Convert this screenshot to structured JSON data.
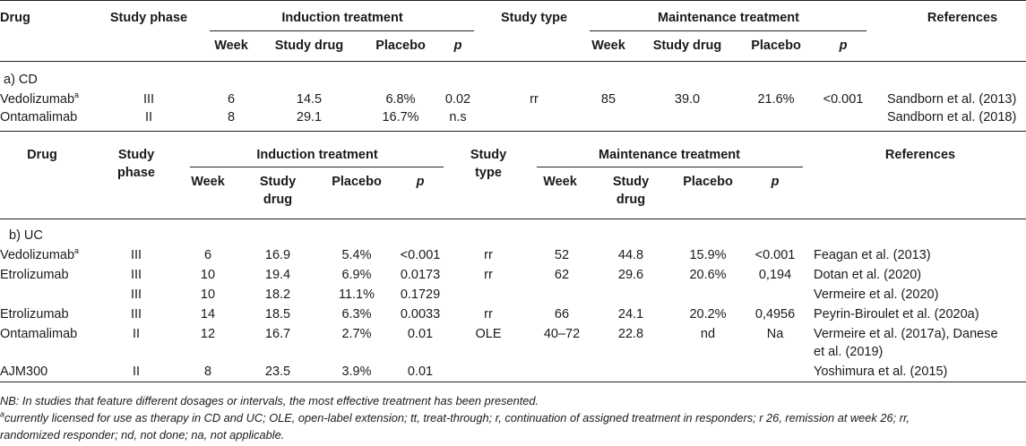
{
  "tableA": {
    "headers": {
      "drug": "Drug",
      "phase": "Study phase",
      "induction": "Induction treatment",
      "study_type": "Study type",
      "maintenance": "Maintenance treatment",
      "references": "References",
      "week": "Week",
      "study_drug": "Study drug",
      "placebo": "Placebo",
      "p": "p"
    },
    "section": "a) CD",
    "rows": [
      {
        "drug": "Vedolizumab",
        "sup": "a",
        "phase": "III",
        "i_week": "6",
        "i_drug": "14.5",
        "i_placebo": "6.8%",
        "i_p": "0.02",
        "type": "rr",
        "m_week": "85",
        "m_drug": "39.0",
        "m_placebo": "21.6%",
        "m_p": "<0.001",
        "ref": "Sandborn et al. (2013)"
      },
      {
        "drug": "Ontamalimab",
        "sup": "",
        "phase": "II",
        "i_week": "8",
        "i_drug": "29.1",
        "i_placebo": "16.7%",
        "i_p": "n.s",
        "type": "",
        "m_week": "",
        "m_drug": "",
        "m_placebo": "",
        "m_p": "",
        "ref": "Sandborn et al. (2018)"
      }
    ]
  },
  "tableB": {
    "headers": {
      "drug": "Drug",
      "phase_1": "Study",
      "phase_2": "phase",
      "induction": "Induction treatment",
      "type_1": "Study",
      "type_2": "type",
      "maintenance": "Maintenance treatment",
      "references": "References",
      "week": "Week",
      "study_drug_1": "Study",
      "study_drug_2": "drug",
      "placebo": "Placebo",
      "p": "p"
    },
    "section": "b) UC",
    "rows": [
      {
        "drug": "Vedolizumab",
        "sup": "a",
        "phase": "III",
        "i_week": "6",
        "i_drug": "16.9",
        "i_placebo": "5.4%",
        "i_p": "<0.001",
        "type": "rr",
        "m_week": "52",
        "m_drug": "44.8",
        "m_placebo": "15.9%",
        "m_p": "<0.001",
        "ref": "Feagan et al. (2013)",
        "ref2": ""
      },
      {
        "drug": "Etrolizumab",
        "sup": "",
        "phase": "III",
        "i_week": "10",
        "i_drug": "19.4",
        "i_placebo": "6.9%",
        "i_p": "0.0173",
        "type": "rr",
        "m_week": "62",
        "m_drug": "29.6",
        "m_placebo": "20.6%",
        "m_p": "0,194",
        "ref": "Dotan et al. (2020)",
        "ref2": ""
      },
      {
        "drug": "",
        "sup": "",
        "phase": "III",
        "i_week": "10",
        "i_drug": "18.2",
        "i_placebo": "11.1%",
        "i_p": "0.1729",
        "type": "",
        "m_week": "",
        "m_drug": "",
        "m_placebo": "",
        "m_p": "",
        "ref": "Vermeire et al. (2020)",
        "ref2": ""
      },
      {
        "drug": "Etrolizumab",
        "sup": "",
        "phase": "III",
        "i_week": "14",
        "i_drug": "18.5",
        "i_placebo": "6.3%",
        "i_p": "0.0033",
        "type": "rr",
        "m_week": "66",
        "m_drug": "24.1",
        "m_placebo": "20.2%",
        "m_p": "0,4956",
        "ref": "Peyrin-Biroulet et al. (2020a)",
        "ref2": ""
      },
      {
        "drug": "Ontamalimab",
        "sup": "",
        "phase": "II",
        "i_week": "12",
        "i_drug": "16.7",
        "i_placebo": "2.7%",
        "i_p": "0.01",
        "type": "OLE",
        "m_week": "40–72",
        "m_drug": "22.8",
        "m_placebo": "nd",
        "m_p": "Na",
        "ref": "Vermeire et al. (2017a), Danese",
        "ref2": "et al. (2019)"
      },
      {
        "drug": "AJM300",
        "sup": "",
        "phase": "II",
        "i_week": "8",
        "i_drug": "23.5",
        "i_placebo": "3.9%",
        "i_p": "0.01",
        "type": "",
        "m_week": "",
        "m_drug": "",
        "m_placebo": "",
        "m_p": "",
        "ref": "Yoshimura et al. (2015)",
        "ref2": ""
      }
    ]
  },
  "footnotes": {
    "nb": "NB: In studies that feature different dosages or intervals, the most effective treatment has been presented.",
    "a_sup": "a",
    "a_line1": "currently licensed for use as therapy in CD and UC; OLE, open-label extension; tt, treat-through; r, continuation of assigned treatment in responders; r 26, remission at week 26; rr,",
    "a_line2": "randomized responder; nd, not done; na, not applicable."
  }
}
